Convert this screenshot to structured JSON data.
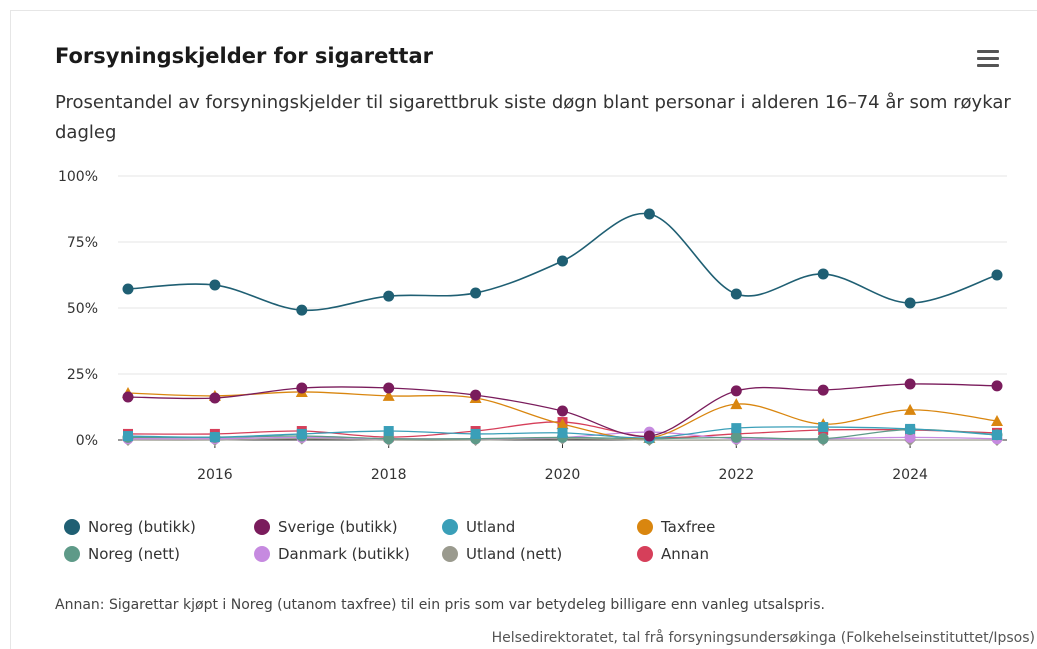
{
  "chart_data": {
    "type": "line",
    "title": "Forsyningskjelder for sigarettar",
    "subtitle": "Prosentandel av forsyningskjelder til sigarettbruk siste døgn blant personar i alderen 16–74 år som røykar dagleg",
    "caption": "Annan: Sigarettar kjøpt i Noreg (utanom taxfree) til ein pris som var betydeleg billigare enn vanleg utsalspris.",
    "credits": "Helsedirektoratet, tal frå forsyningsundersøkinga (Folkehelseinstituttet/Ipsos)",
    "x": [
      2015,
      2016,
      2017,
      2018,
      2019,
      2020,
      2021,
      2022,
      2023,
      2024,
      2025
    ],
    "xlim": [
      2015,
      2025
    ],
    "xticks": [
      2016,
      2018,
      2020,
      2022,
      2024
    ],
    "ylim": [
      0,
      100
    ],
    "yticks": [
      {
        "value": 0,
        "label": "0%"
      },
      {
        "value": 25,
        "label": "25%"
      },
      {
        "value": 50,
        "label": "50%"
      },
      {
        "value": 75,
        "label": "75%"
      },
      {
        "value": 100,
        "label": "100%"
      }
    ],
    "grid": true,
    "series": [
      {
        "name": "Noreg (butikk)",
        "color": "#1f5f73",
        "marker": "circle",
        "values": [
          57.2,
          58.7,
          49.2,
          54.5,
          55.7,
          67.8,
          85.6,
          55.3,
          62.9,
          51.9,
          62.5
        ]
      },
      {
        "name": "Sverige (butikk)",
        "color": "#7a1c5c",
        "marker": "circle",
        "values": [
          16.3,
          15.9,
          19.7,
          19.7,
          17,
          11,
          1.5,
          18.6,
          18.9,
          21.2,
          20.5
        ]
      },
      {
        "name": "Utland",
        "color": "#3a9fb8",
        "marker": "square",
        "values": [
          1.5,
          1.1,
          2.3,
          3.4,
          2.3,
          2.7,
          0.8,
          4.5,
          4.9,
          4.2,
          1.9
        ]
      },
      {
        "name": "Taxfree",
        "color": "#d9860f",
        "marker": "triangle",
        "values": [
          17.8,
          16.7,
          18.2,
          16.7,
          15.9,
          6,
          0.8,
          13.6,
          6,
          11.4,
          7.2
        ]
      },
      {
        "name": "Noreg (nett)",
        "color": "#5e9a88",
        "marker": "circle",
        "values": [
          1,
          1,
          1.5,
          0.5,
          0.5,
          1,
          0.5,
          1,
          0.5,
          4,
          2
        ]
      },
      {
        "name": "Danmark (butikk)",
        "color": "#c68ae0",
        "marker": "circle",
        "values": [
          0.5,
          0.5,
          1,
          0.5,
          0.5,
          1,
          3,
          0.5,
          0.5,
          1,
          0.5
        ]
      },
      {
        "name": "Utland (nett)",
        "color": "#9a9a8e",
        "marker": "diamond",
        "values": [
          0,
          0,
          0.5,
          0,
          0,
          0.5,
          0,
          0,
          0,
          0,
          0
        ]
      },
      {
        "name": "Annan",
        "color": "#d63f5a",
        "marker": "square",
        "values": [
          2.3,
          2.3,
          3.4,
          1.1,
          3.4,
          6.8,
          1.1,
          2.3,
          3.8,
          3.8,
          2.7
        ]
      }
    ]
  }
}
